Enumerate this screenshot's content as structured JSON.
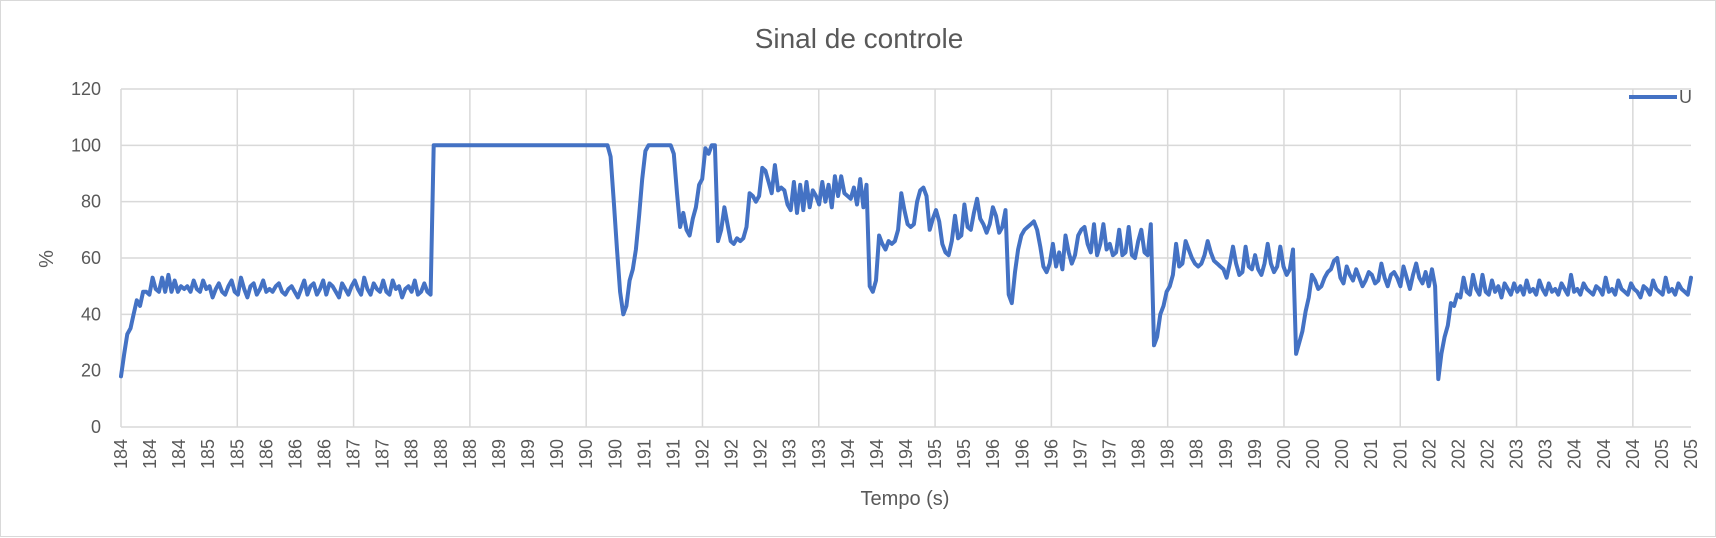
{
  "chart_data": {
    "type": "line",
    "title": "Sinal de controle",
    "xlabel": "Tempo (s)",
    "ylabel": "%",
    "ylim": [
      0,
      120
    ],
    "y_ticks": [
      0,
      20,
      40,
      60,
      80,
      100,
      120
    ],
    "x_tick_labels": [
      "184",
      "184",
      "184",
      "185",
      "185",
      "186",
      "186",
      "186",
      "187",
      "187",
      "188",
      "188",
      "188",
      "189",
      "189",
      "190",
      "190",
      "190",
      "191",
      "191",
      "192",
      "192",
      "192",
      "193",
      "193",
      "194",
      "194",
      "194",
      "195",
      "195",
      "196",
      "196",
      "196",
      "197",
      "197",
      "198",
      "198",
      "198",
      "199",
      "199",
      "200",
      "200",
      "200",
      "201",
      "201",
      "202",
      "202",
      "202",
      "203",
      "203",
      "204",
      "204",
      "204",
      "205",
      "205"
    ],
    "grid": true,
    "legend": "top-right",
    "colors": {
      "series": "#4472c4",
      "grid": "#d9d9d9",
      "text": "#595959"
    },
    "series": [
      {
        "name": "U",
        "values": [
          18,
          26,
          33,
          35,
          40,
          45,
          43,
          48,
          48,
          47,
          53,
          49,
          48,
          53,
          48,
          54,
          48,
          52,
          48,
          50,
          49,
          50,
          48,
          52,
          49,
          48,
          52,
          49,
          50,
          46,
          49,
          51,
          48,
          47,
          50,
          52,
          48,
          47,
          53,
          49,
          46,
          50,
          51,
          47,
          49,
          52,
          48,
          49,
          48,
          50,
          51,
          48,
          47,
          49,
          50,
          48,
          46,
          49,
          52,
          47,
          50,
          51,
          47,
          49,
          52,
          47,
          51,
          50,
          48,
          46,
          51,
          49,
          47,
          50,
          52,
          49,
          47,
          53,
          49,
          47,
          51,
          49,
          48,
          52,
          48,
          47,
          52,
          49,
          50,
          46,
          49,
          50,
          48,
          52,
          47,
          48,
          51,
          48,
          47,
          100,
          100,
          100,
          100,
          100,
          100,
          100,
          100,
          100,
          100,
          100,
          100,
          100,
          100,
          100,
          100,
          100,
          100,
          100,
          100,
          100,
          100,
          100,
          100,
          100,
          100,
          100,
          100,
          100,
          100,
          100,
          100,
          100,
          100,
          100,
          100,
          100,
          100,
          100,
          100,
          100,
          100,
          100,
          100,
          100,
          100,
          100,
          100,
          100,
          100,
          100,
          100,
          100,
          100,
          100,
          100,
          96,
          80,
          63,
          48,
          40,
          43,
          52,
          56,
          63,
          75,
          88,
          98,
          100,
          100,
          100,
          100,
          100,
          100,
          100,
          100,
          97,
          83,
          71,
          76,
          70,
          68,
          74,
          78,
          86,
          88,
          99,
          97,
          100,
          100,
          66,
          70,
          78,
          72,
          66,
          65,
          67,
          66,
          67,
          71,
          83,
          82,
          80,
          82,
          92,
          91,
          87,
          83,
          93,
          84,
          85,
          84,
          79,
          77,
          87,
          76,
          86,
          77,
          87,
          78,
          84,
          82,
          79,
          87,
          80,
          86,
          78,
          89,
          82,
          89,
          83,
          82,
          81,
          85,
          79,
          88,
          78,
          86,
          50,
          48,
          52,
          68,
          65,
          63,
          66,
          65,
          66,
          70,
          83,
          77,
          72,
          71,
          72,
          80,
          84,
          85,
          82,
          70,
          74,
          77,
          73,
          65,
          62,
          61,
          66,
          75,
          67,
          68,
          79,
          71,
          70,
          76,
          81,
          74,
          72,
          69,
          72,
          78,
          75,
          69,
          71,
          77,
          47,
          44,
          55,
          63,
          68,
          70,
          71,
          72,
          73,
          70,
          64,
          57,
          55,
          58,
          65,
          57,
          62,
          56,
          68,
          62,
          58,
          61,
          68,
          70,
          71,
          65,
          62,
          72,
          61,
          65,
          72,
          63,
          65,
          61,
          62,
          70,
          61,
          62,
          71,
          61,
          60,
          66,
          70,
          62,
          61,
          72,
          29,
          32,
          40,
          43,
          48,
          50,
          54,
          65,
          57,
          58,
          66,
          63,
          60,
          58,
          57,
          58,
          61,
          66,
          62,
          59,
          58,
          57,
          56,
          53,
          58,
          64,
          58,
          54,
          55,
          64,
          57,
          56,
          61,
          56,
          54,
          58,
          65,
          58,
          55,
          57,
          64,
          57,
          54,
          56,
          63,
          26,
          30,
          34,
          41,
          46,
          54,
          52,
          49,
          50,
          53,
          55,
          56,
          59,
          60,
          53,
          51,
          57,
          54,
          52,
          56,
          53,
          50,
          52,
          55,
          54,
          51,
          52,
          58,
          53,
          50,
          54,
          55,
          53,
          50,
          57,
          53,
          49,
          54,
          58,
          53,
          51,
          55,
          50,
          56,
          50,
          17,
          26,
          32,
          36,
          44,
          43,
          47,
          46,
          53,
          48,
          47,
          54,
          49,
          47,
          54,
          48,
          47,
          52,
          48,
          50,
          46,
          51,
          49,
          47,
          51,
          48,
          50,
          47,
          52,
          48,
          49,
          47,
          52,
          49,
          47,
          51,
          48,
          49,
          47,
          51,
          49,
          47,
          54,
          48,
          49,
          47,
          51,
          49,
          48,
          47,
          50,
          49,
          47,
          53,
          48,
          49,
          47,
          52,
          49,
          48,
          47,
          51,
          49,
          48,
          46,
          50,
          49,
          47,
          52,
          49,
          48,
          47,
          53,
          48,
          49,
          47,
          51,
          49,
          48,
          47,
          53
        ]
      }
    ]
  }
}
